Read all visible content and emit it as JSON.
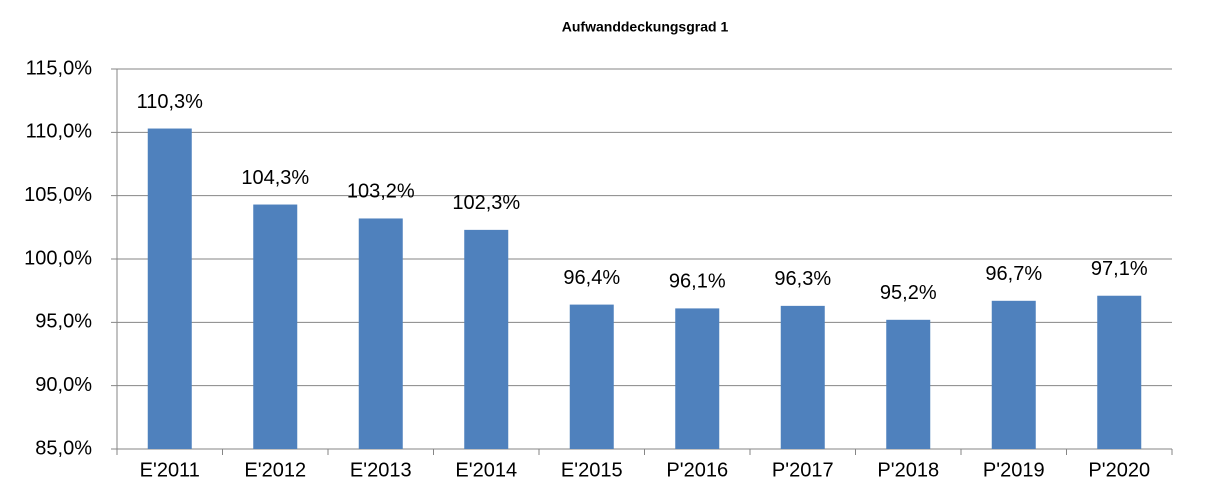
{
  "chart_data": {
    "type": "bar",
    "title": "Aufwanddeckungsgrad 1",
    "categories": [
      "E'2011",
      "E'2012",
      "E'2013",
      "E'2014",
      "E'2015",
      "P'2016",
      "P'2017",
      "P'2018",
      "P'2019",
      "P'2020"
    ],
    "values": [
      110.3,
      104.3,
      103.2,
      102.3,
      96.4,
      96.1,
      96.3,
      95.2,
      96.7,
      97.1
    ],
    "value_labels": [
      "110,3%",
      "104,3%",
      "103,2%",
      "102,3%",
      "96,4%",
      "96,1%",
      "96,3%",
      "95,2%",
      "96,7%",
      "97,1%"
    ],
    "color": "#4f81bd",
    "ylim": [
      85,
      115
    ],
    "yticks": [
      {
        "value": 85,
        "label": "85,0%"
      },
      {
        "value": 90,
        "label": "90,0%"
      },
      {
        "value": 95,
        "label": "95,0%"
      },
      {
        "value": 100,
        "label": "100,0%"
      },
      {
        "value": 105,
        "label": "105,0%"
      },
      {
        "value": 110,
        "label": "110,0%"
      },
      {
        "value": 115,
        "label": "115,0%"
      }
    ],
    "grid": true
  }
}
